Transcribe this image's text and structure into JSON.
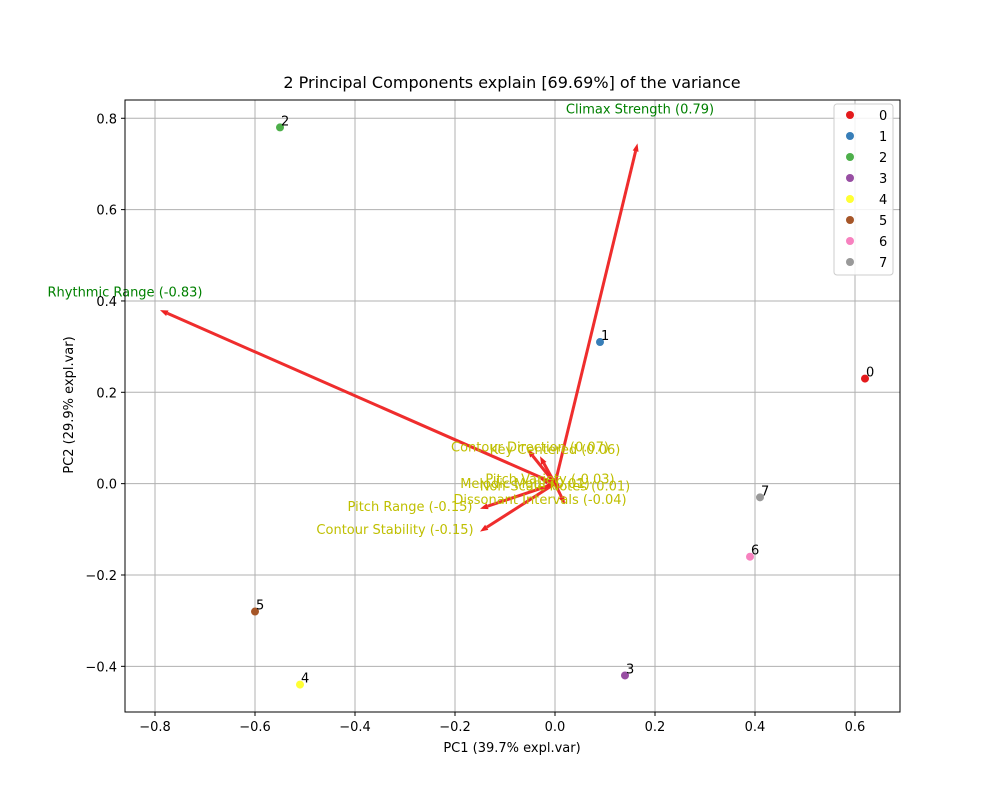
{
  "chart_data": {
    "type": "scatter",
    "title": "2 Principal Components explain [69.69%] of the variance",
    "xlabel": "PC1 (39.7% expl.var)",
    "ylabel": "PC2 (29.9% expl.var)",
    "xlim": [
      -0.86,
      0.69
    ],
    "ylim": [
      -0.5,
      0.84
    ],
    "xticks": [
      -0.8,
      -0.6,
      -0.4,
      -0.2,
      0.0,
      0.2,
      0.4,
      0.6
    ],
    "xtick_labels": [
      "−0.8",
      "−0.6",
      "−0.4",
      "−0.2",
      "0.0",
      "0.2",
      "0.4",
      "0.6"
    ],
    "yticks": [
      -0.4,
      -0.2,
      0.0,
      0.2,
      0.4,
      0.6,
      0.8
    ],
    "ytick_labels": [
      "−0.4",
      "−0.2",
      "0.0",
      "0.2",
      "0.4",
      "0.6",
      "0.8"
    ],
    "grid": true,
    "legend_position": "top-right",
    "points": [
      {
        "label": "0",
        "x": 0.62,
        "y": 0.23,
        "color": "#e41a1c"
      },
      {
        "label": "1",
        "x": 0.09,
        "y": 0.31,
        "color": "#377eb8"
      },
      {
        "label": "2",
        "x": -0.55,
        "y": 0.78,
        "color": "#4daf4a"
      },
      {
        "label": "3",
        "x": 0.14,
        "y": -0.42,
        "color": "#984ea3"
      },
      {
        "label": "4",
        "x": -0.51,
        "y": -0.44,
        "color": "#ffff33"
      },
      {
        "label": "5",
        "x": -0.6,
        "y": -0.28,
        "color": "#a65628"
      },
      {
        "label": "6",
        "x": 0.39,
        "y": -0.16,
        "color": "#f781bf"
      },
      {
        "label": "7",
        "x": 0.41,
        "y": -0.03,
        "color": "#999999"
      }
    ],
    "loadings": [
      {
        "label": "Climax Strength (0.79)",
        "x": 0.165,
        "y": 0.745,
        "label_x": 0.17,
        "label_y": 0.81,
        "label_color": "#008000"
      },
      {
        "label": "Rhythmic Range (-0.83)",
        "x": -0.79,
        "y": 0.38,
        "label_x": -0.86,
        "label_y": 0.41,
        "label_color": "#008000"
      },
      {
        "label": "Contour Direction (0.07)",
        "x": -0.055,
        "y": 0.075,
        "label_x": -0.05,
        "label_y": 0.07,
        "label_color": "#bfbf00"
      },
      {
        "label": "Key Centered (0.06)",
        "x": -0.03,
        "y": 0.06,
        "label_x": -0.0,
        "label_y": 0.065,
        "label_color": "#bfbf00"
      },
      {
        "label": "Pitch Variety (-0.03)",
        "x": -0.03,
        "y": 0.01,
        "label_x": -0.01,
        "label_y": 0.0,
        "label_color": "#bfbf00"
      },
      {
        "label": "Melodic Motif (0.01)",
        "x": -0.02,
        "y": -0.005,
        "label_x": -0.06,
        "label_y": -0.01,
        "label_color": "#bfbf00"
      },
      {
        "label": "Non-Scale Notes (0.01)",
        "x": 0.01,
        "y": -0.01,
        "label_x": 0.0,
        "label_y": -0.015,
        "label_color": "#bfbf00"
      },
      {
        "label": "Dissonant Intervals (-0.04)",
        "x": 0.02,
        "y": -0.045,
        "label_x": -0.03,
        "label_y": -0.045,
        "label_color": "#bfbf00"
      },
      {
        "label": "Pitch Range (-0.15)",
        "x": -0.15,
        "y": -0.055,
        "label_x": -0.29,
        "label_y": -0.06,
        "label_color": "#bfbf00"
      },
      {
        "label": "Contour Stability (-0.15)",
        "x": -0.15,
        "y": -0.105,
        "label_x": -0.32,
        "label_y": -0.11,
        "label_color": "#bfbf00"
      }
    ],
    "arrow_color": "#ee2222",
    "legend": [
      "0",
      "1",
      "2",
      "3",
      "4",
      "5",
      "6",
      "7"
    ]
  }
}
